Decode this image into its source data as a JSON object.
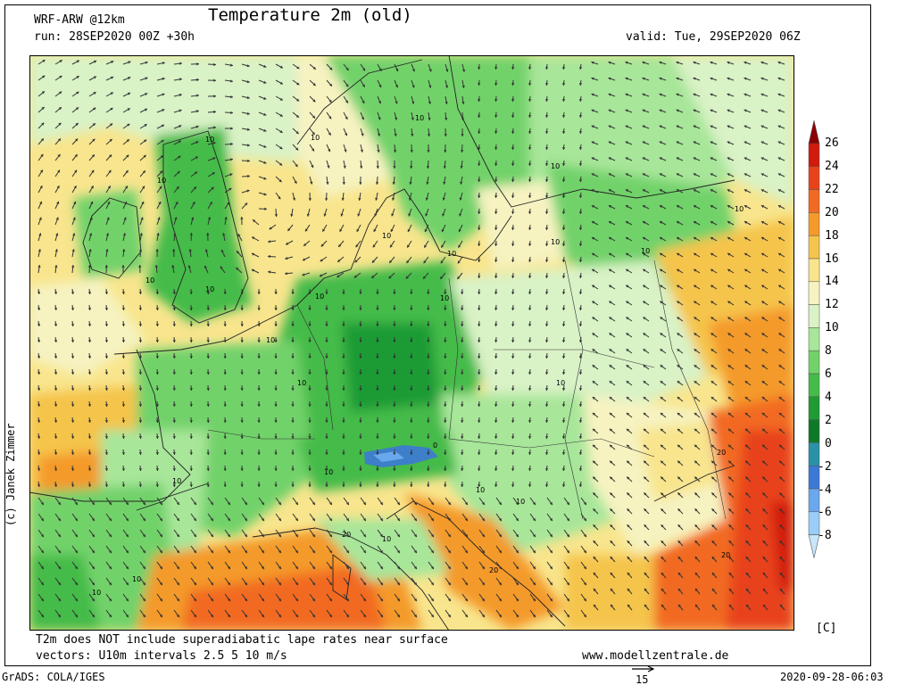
{
  "header": {
    "title": "Temperature 2m (old)",
    "model": "WRF-ARW @12km",
    "run": "run: 28SEP2020 00Z +30h",
    "valid": "valid: Tue, 29SEP2020 06Z"
  },
  "map": {
    "region": "Europe",
    "contour_labels": [
      "10",
      "10",
      "10",
      "10",
      "10",
      "10",
      "10",
      "10",
      "10",
      "10",
      "10",
      "10",
      "10",
      "10",
      "10",
      "10",
      "10",
      "10",
      "10",
      "10",
      "10",
      "10",
      "10",
      "10",
      "20",
      "20",
      "20",
      "20",
      "0"
    ],
    "wind_vectors": "shown"
  },
  "colorbar": {
    "unit": "[C]",
    "ticks": [
      "26",
      "24",
      "22",
      "20",
      "18",
      "16",
      "14",
      "12",
      "10",
      "8",
      "6",
      "4",
      "2",
      "0",
      "-2",
      "-4",
      "-6",
      "-8"
    ],
    "colors": [
      "#8b0000",
      "#d21a0d",
      "#e8421b",
      "#f26a22",
      "#f49a2a",
      "#f5c44c",
      "#f8e58d",
      "#f6f3c1",
      "#d9f2c6",
      "#a8e69a",
      "#72d26a",
      "#45bb4a",
      "#1f9b34",
      "#0e7a27",
      "#2a92a6",
      "#3c79d6",
      "#6aa8ee",
      "#9acdf7",
      "#c7e6fb"
    ]
  },
  "footer": {
    "note1": "T2m does NOT include superadiabatic lape rates near surface",
    "note2": "vectors: U10m intervals 2.5 5 10 m/s",
    "website": "www.modellzentrale.de",
    "grads": "GrADS: COLA/IGES",
    "timestamp": "2020-09-28-06:03",
    "ref_vector_label": "15",
    "copyright": "(c) Janek Zimmer"
  }
}
